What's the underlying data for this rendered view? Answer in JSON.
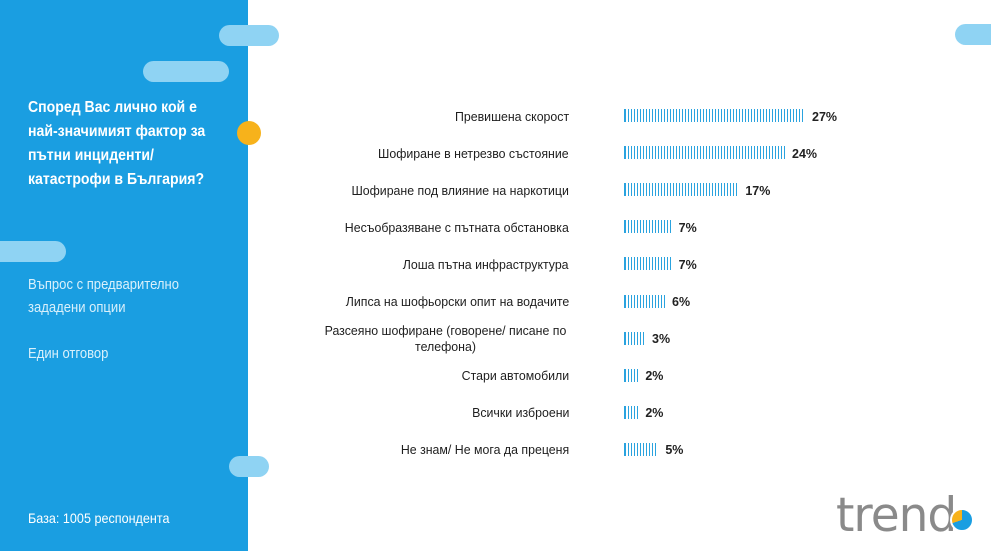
{
  "sidebar": {
    "question": "Според Вас лично кой е най-значимият фактор за пътни инциденти/ катастрофи в България?",
    "note_options": "Въпрос с предварително зададени опции",
    "note_answer": "Един отговор",
    "base": "База:  1005 респондента"
  },
  "colors": {
    "sidebar_blue": "#1a9ee1",
    "bar_blue": "#2aa3df",
    "accent_yellow": "#f7b21b",
    "pill_light": "#8fd3f3"
  },
  "logo": {
    "text": "trend"
  },
  "chart_data": {
    "type": "bar",
    "orientation": "horizontal",
    "categories": [
      "Превишена скорост",
      "Шофиране в нетрезво състояние",
      "Шофиране под влияние на наркотици",
      "Несъобразяване с пътната обстановка",
      "Лоша пътна инфраструктура",
      "Липса на шофьорски опит на водачите",
      "Разсеяно шофиране (говорене/ писане по телефона)",
      "Стари автомобили",
      "Всички изброени",
      "Не знам/ Не мога да преценя"
    ],
    "values": [
      27,
      24,
      17,
      7,
      7,
      6,
      3,
      2,
      2,
      5
    ],
    "value_labels": [
      "27%",
      "24%",
      "17%",
      "7%",
      "7%",
      "6%",
      "3%",
      "2%",
      "2%",
      "5%"
    ],
    "xlim": [
      0,
      27
    ],
    "grid": false
  }
}
